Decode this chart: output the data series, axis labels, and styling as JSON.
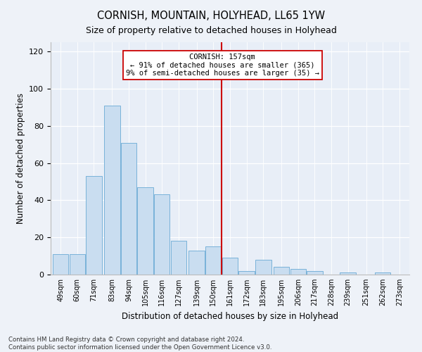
{
  "title": "CORNISH, MOUNTAIN, HOLYHEAD, LL65 1YW",
  "subtitle": "Size of property relative to detached houses in Holyhead",
  "xlabel": "Distribution of detached houses by size in Holyhead",
  "ylabel": "Number of detached properties",
  "bar_labels": [
    "49sqm",
    "60sqm",
    "71sqm",
    "83sqm",
    "94sqm",
    "105sqm",
    "116sqm",
    "127sqm",
    "139sqm",
    "150sqm",
    "161sqm",
    "172sqm",
    "183sqm",
    "195sqm",
    "206sqm",
    "217sqm",
    "228sqm",
    "239sqm",
    "251sqm",
    "262sqm",
    "273sqm"
  ],
  "bar_values": [
    11,
    11,
    53,
    91,
    71,
    47,
    43,
    18,
    13,
    15,
    9,
    2,
    8,
    4,
    3,
    2,
    0,
    1,
    0,
    1,
    0
  ],
  "bar_color": "#c9ddf0",
  "bar_edge_color": "#6aaad4",
  "vline_color": "#cc0000",
  "annotation_box_color": "#ffffff",
  "annotation_box_edge": "#cc0000",
  "annotation_title": "CORNISH: 157sqm",
  "annotation_line1": "← 91% of detached houses are smaller (365)",
  "annotation_line2": "9% of semi-detached houses are larger (35) →",
  "ylim": [
    0,
    125
  ],
  "yticks": [
    0,
    20,
    40,
    60,
    80,
    100,
    120
  ],
  "background_color": "#e8eef7",
  "fig_background_color": "#eef2f8",
  "footer1": "Contains HM Land Registry data © Crown copyright and database right 2024.",
  "footer2": "Contains public sector information licensed under the Open Government Licence v3.0."
}
